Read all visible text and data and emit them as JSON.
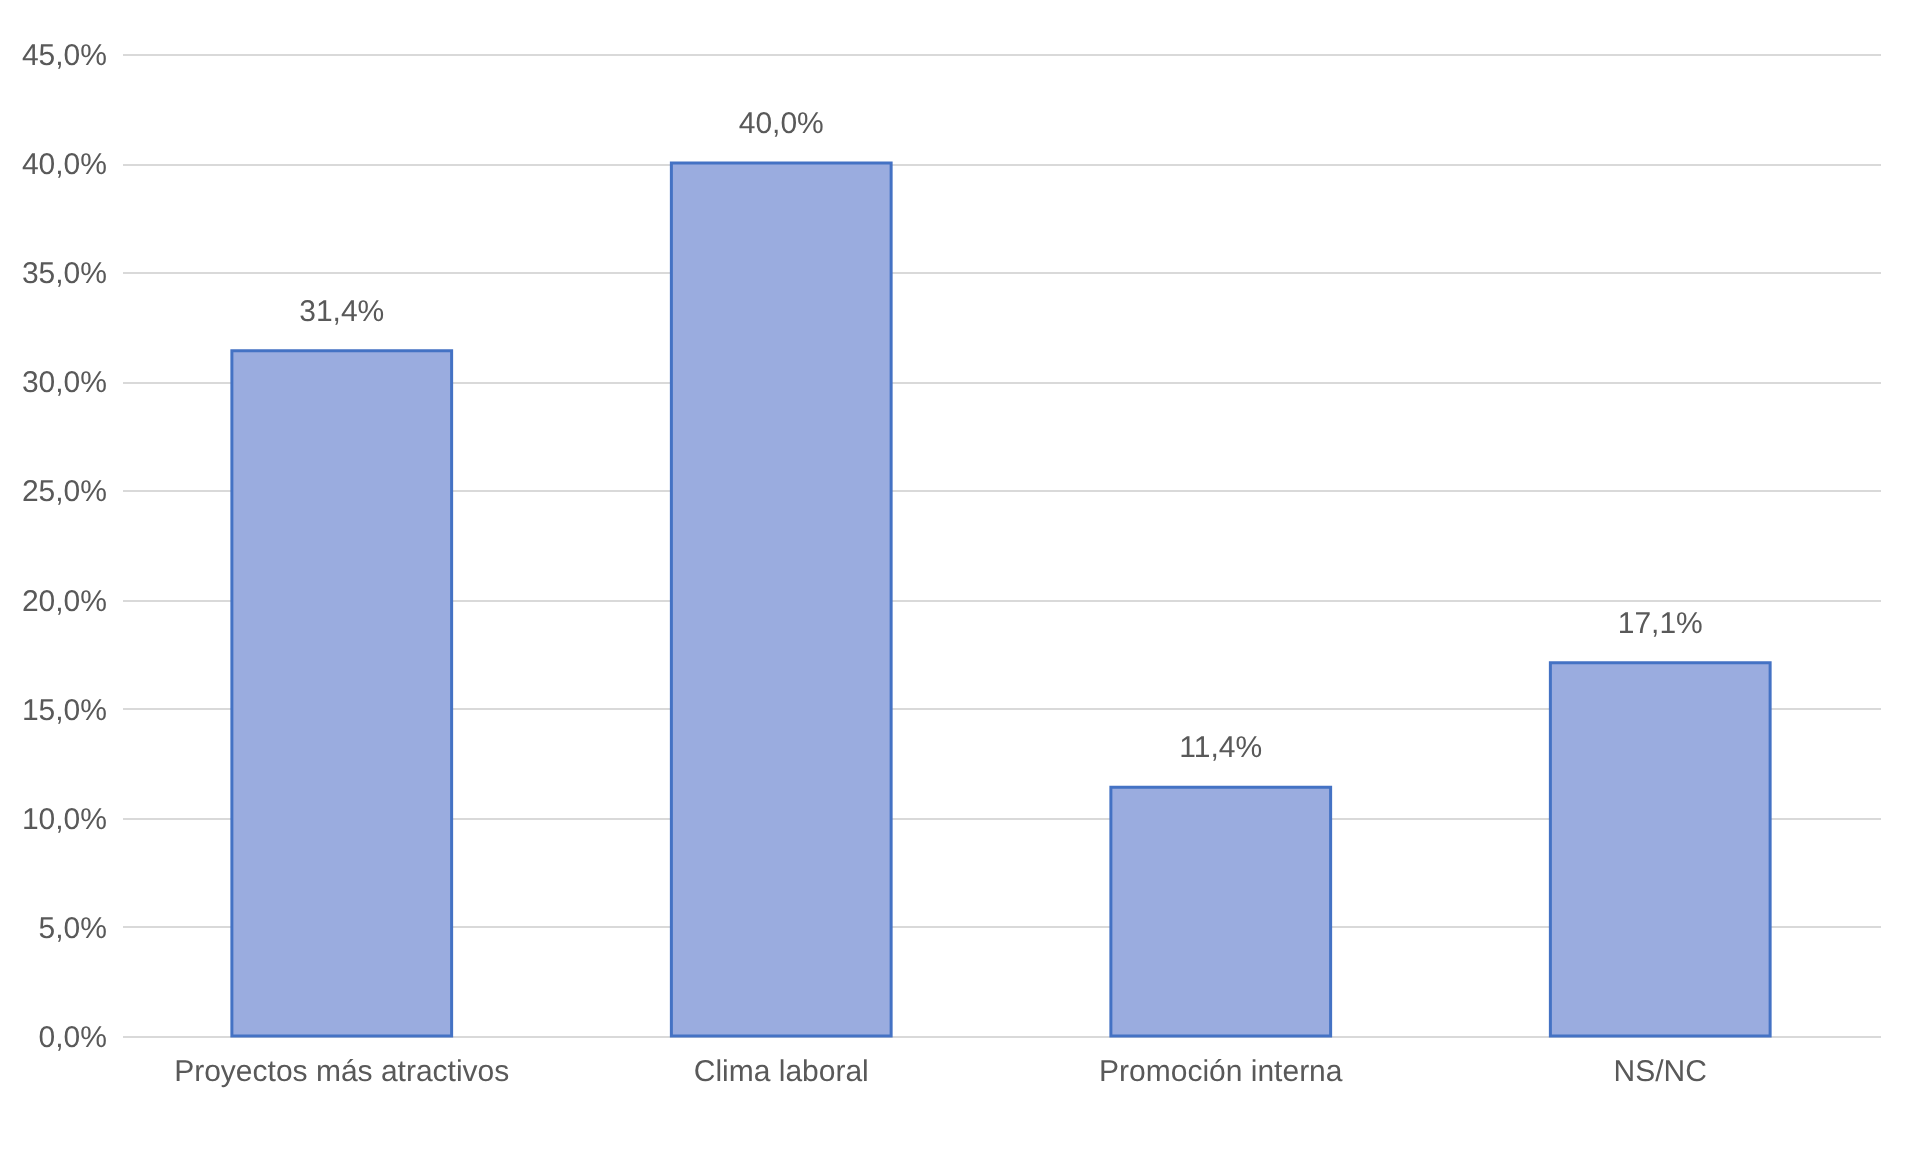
{
  "chart_data": {
    "type": "bar",
    "categories": [
      "Proyectos más atractivos",
      "Clima laboral",
      "Promoción interna",
      "NS/NC"
    ],
    "values": [
      31.4,
      40.0,
      11.4,
      17.1
    ],
    "value_labels": [
      "31,4%",
      "40,0%",
      "11,4%",
      "17,1%"
    ],
    "color": "#9aacdf",
    "ylim": [
      0,
      45
    ],
    "yticks": [
      {
        "value": 0,
        "label": "0,0%"
      },
      {
        "value": 5,
        "label": "5,0%"
      },
      {
        "value": 10,
        "label": "10,0%"
      },
      {
        "value": 15,
        "label": "15,0%"
      },
      {
        "value": 20,
        "label": "20,0%"
      },
      {
        "value": 25,
        "label": "25,0%"
      },
      {
        "value": 30,
        "label": "30,0%"
      },
      {
        "value": 35,
        "label": "35,0%"
      },
      {
        "value": 40,
        "label": "40,0%"
      },
      {
        "value": 45,
        "label": "45,0%"
      }
    ],
    "grid": "y"
  }
}
